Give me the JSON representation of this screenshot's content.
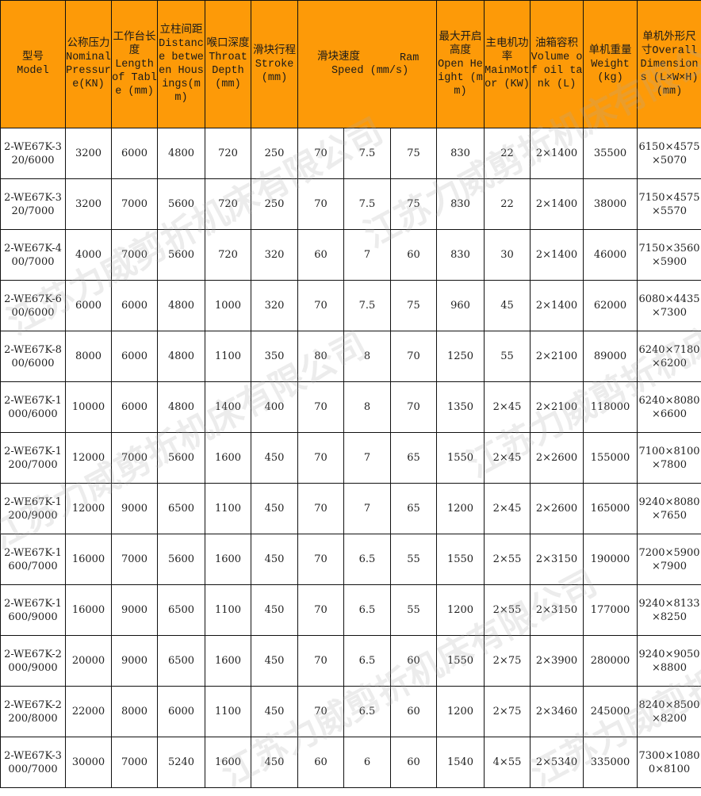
{
  "header": {
    "model": [
      "型号",
      "Model"
    ],
    "pressure": [
      "公称压力",
      "Nominal Pressure(KN)"
    ],
    "length": [
      "工作台长度",
      "Length of Table (mm)"
    ],
    "distance": [
      "立柱间距",
      "Distance between Housings(mm)"
    ],
    "throat": [
      "喉口深度",
      "Throat Depth (mm)"
    ],
    "stroke": [
      "滑块行程",
      "Stroke (mm)"
    ],
    "speed": [
      "滑块速度",
      "Speed (mm/s)"
    ],
    "speed_ram": "Ram",
    "open_height": [
      "最大开启高度",
      "Open Height (mm)"
    ],
    "motor": [
      "主电机功率",
      "MainMotor (KW)"
    ],
    "oil": [
      "油箱容积",
      "Volume of oil tank (L)"
    ],
    "weight": [
      "单机重量",
      "Weight (kg)"
    ],
    "dimensions": [
      "单机外形尺寸Overall",
      "Dimensions (L×W×H) (mm)"
    ]
  },
  "rows": [
    [
      "2-WE67K-320/6000",
      "3200",
      "6000",
      "4800",
      "720",
      "250",
      "70",
      "7.5",
      "75",
      "830",
      "22",
      "2×1400",
      "35500",
      "6150×4575×5070"
    ],
    [
      "2-WE67K-320/7000",
      "3200",
      "7000",
      "5600",
      "720",
      "250",
      "70",
      "7.5",
      "75",
      "830",
      "22",
      "2×1400",
      "38000",
      "7150×4575×5570"
    ],
    [
      "2-WE67K-400/7000",
      "4000",
      "7000",
      "5600",
      "720",
      "320",
      "60",
      "7",
      "60",
      "830",
      "30",
      "2×1400",
      "46000",
      "7150×3560×5900"
    ],
    [
      "2-WE67K-600/6000",
      "6000",
      "6000",
      "4800",
      "1000",
      "320",
      "70",
      "7.5",
      "75",
      "960",
      "45",
      "2×1400",
      "62000",
      "6080×4435×7300"
    ],
    [
      "2-WE67K-800/6000",
      "8000",
      "6000",
      "4800",
      "1100",
      "350",
      "80",
      "8",
      "70",
      "1250",
      "55",
      "2×2100",
      "89000",
      "6240×7180×6200"
    ],
    [
      "2-WE67K-1000/6000",
      "10000",
      "6000",
      "4800",
      "1400",
      "400",
      "70",
      "8",
      "70",
      "1350",
      "2×45",
      "2×2100",
      "118000",
      "6240×8080×6600"
    ],
    [
      "2-WE67K-1200/7000",
      "12000",
      "7000",
      "5600",
      "1600",
      "450",
      "70",
      "7",
      "65",
      "1550",
      "2×45",
      "2×2600",
      "155000",
      "7100×8100×7800"
    ],
    [
      "2-WE67K-1200/9000",
      "12000",
      "9000",
      "6500",
      "1100",
      "450",
      "70",
      "7",
      "65",
      "1200",
      "2×45",
      "2×2600",
      "165000",
      "9240×8080×7650"
    ],
    [
      "2-WE67K-1600/7000",
      "16000",
      "7000",
      "5600",
      "1600",
      "450",
      "70",
      "6.5",
      "55",
      "1550",
      "2×55",
      "2×3150",
      "190000",
      "7200×5900×7900"
    ],
    [
      "2-WE67K-1600/9000",
      "16000",
      "9000",
      "6500",
      "1100",
      "450",
      "70",
      "6.5",
      "55",
      "1200",
      "2×55",
      "2×3150",
      "177000",
      "9240×8133×8250"
    ],
    [
      "2-WE67K-2000/9000",
      "20000",
      "9000",
      "6500",
      "1600",
      "450",
      "70",
      "6.5",
      "60",
      "1550",
      "2×75",
      "2×3900",
      "280000",
      "9240×9050×8800"
    ],
    [
      "2-WE67K-2200/8000",
      "22000",
      "8000",
      "6000",
      "1100",
      "450",
      "70",
      "6.5",
      "60",
      "1200",
      "2×75",
      "2×3460",
      "245000",
      "8240×8500×8200"
    ],
    [
      "2-WE67K-3000/7000",
      "30000",
      "7000",
      "5240",
      "1600",
      "450",
      "60",
      "6",
      "60",
      "1540",
      "4×55",
      "2×5340",
      "335000",
      "7300×10800×8100"
    ]
  ],
  "watermark": "江苏力威剪折机床有限公司",
  "colors": {
    "header_bg": "#fd9a08",
    "border": "#111111"
  }
}
